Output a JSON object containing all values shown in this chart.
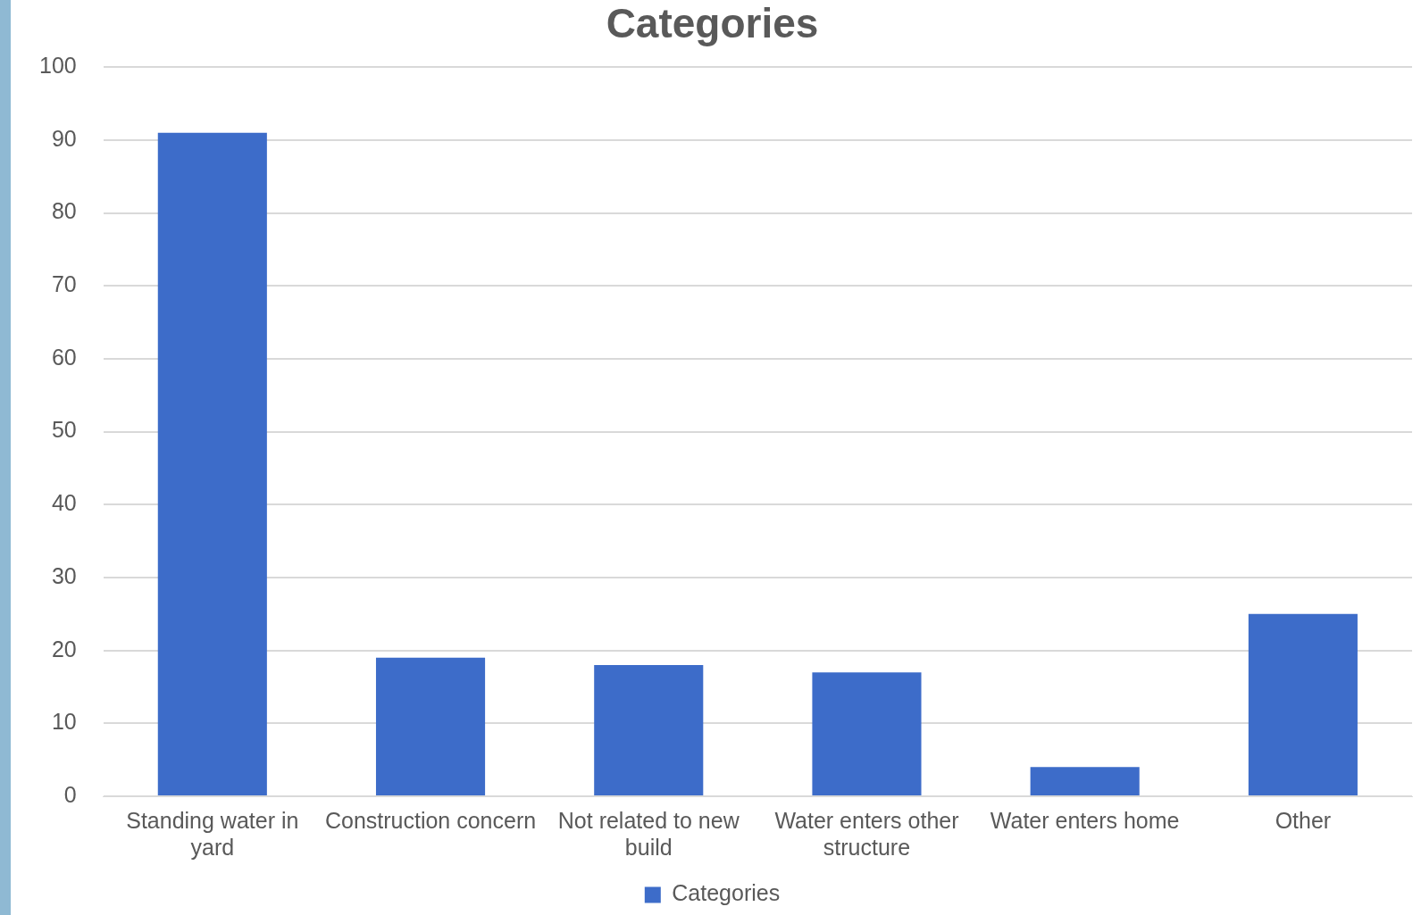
{
  "chart_data": {
    "type": "bar",
    "title": "Categories",
    "categories": [
      "Standing water in yard",
      "Construction concern",
      "Not related to new build",
      "Water enters other structure",
      "Water enters home",
      "Other"
    ],
    "series": [
      {
        "name": "Categories",
        "color": "#3d6cc9",
        "values": [
          91,
          19,
          18,
          17,
          4,
          25
        ]
      }
    ],
    "ylim": [
      0,
      100
    ],
    "yticks": [
      0,
      10,
      20,
      30,
      40,
      50,
      60,
      70,
      80,
      90,
      100
    ],
    "grid": "y",
    "legend": "bottom"
  }
}
